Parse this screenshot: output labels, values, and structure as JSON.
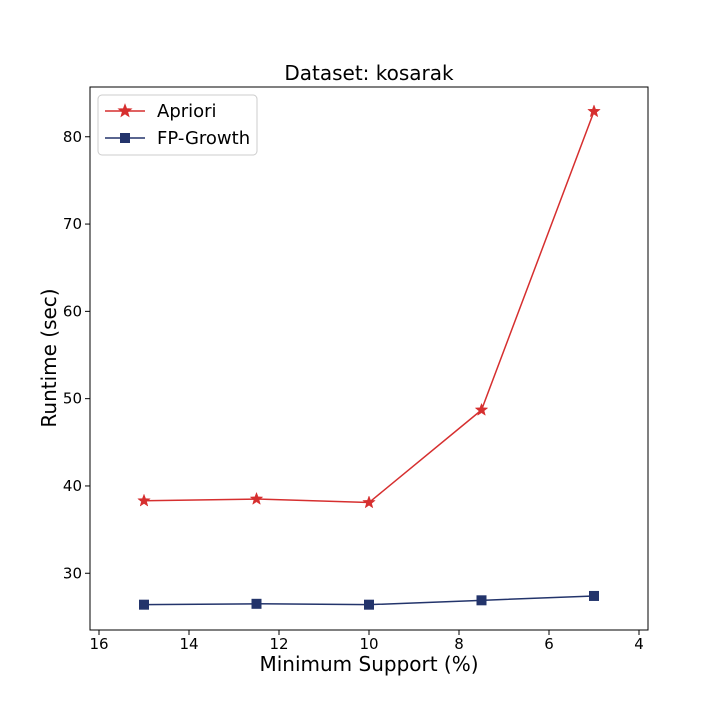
{
  "chart_data": {
    "type": "line",
    "title": "Dataset: kosarak",
    "xlabel": "Minimum Support (%)",
    "ylabel": "Runtime (sec)",
    "x_inverted": true,
    "xlim": [
      16.2,
      3.8
    ],
    "ylim": [
      23.5,
      85.7
    ],
    "xticks": [
      16,
      14,
      12,
      10,
      8,
      6,
      4
    ],
    "yticks": [
      30,
      40,
      50,
      60,
      70,
      80
    ],
    "legend_position": "top-left",
    "grid": false,
    "x": [
      15,
      12.5,
      10,
      7.5,
      5
    ],
    "series": [
      {
        "name": "Apriori",
        "marker": "star",
        "color": "#d62f2f",
        "values": [
          38.3,
          38.5,
          38.1,
          48.7,
          82.9
        ]
      },
      {
        "name": "FP-Growth",
        "marker": "square",
        "color": "#23346b",
        "values": [
          26.4,
          26.5,
          26.4,
          26.9,
          27.4
        ]
      }
    ]
  }
}
